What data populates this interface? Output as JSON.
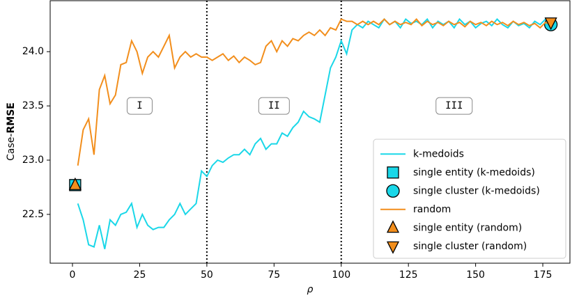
{
  "chart_data": {
    "type": "line",
    "ylabel": [
      "Case-",
      "RMSE"
    ],
    "xlabel": "ρ",
    "x": [
      2,
      4,
      6,
      8,
      10,
      12,
      14,
      16,
      18,
      20,
      22,
      24,
      26,
      28,
      30,
      32,
      34,
      36,
      38,
      40,
      42,
      44,
      46,
      48,
      50,
      52,
      54,
      56,
      58,
      60,
      62,
      64,
      66,
      68,
      70,
      72,
      74,
      76,
      78,
      80,
      82,
      84,
      86,
      88,
      90,
      92,
      94,
      96,
      98,
      100,
      102,
      104,
      106,
      108,
      110,
      112,
      114,
      116,
      118,
      120,
      122,
      124,
      126,
      128,
      130,
      132,
      134,
      136,
      138,
      140,
      142,
      144,
      146,
      148,
      150,
      152,
      154,
      156,
      158,
      160,
      162,
      164,
      166,
      168,
      170,
      172,
      174,
      176,
      178
    ],
    "series": [
      {
        "name": "k-medoids",
        "color": "#1ad7e8",
        "values": [
          22.6,
          22.45,
          22.22,
          22.2,
          22.4,
          22.18,
          22.45,
          22.4,
          22.5,
          22.52,
          22.6,
          22.38,
          22.5,
          22.4,
          22.36,
          22.38,
          22.38,
          22.45,
          22.5,
          22.6,
          22.5,
          22.55,
          22.6,
          22.9,
          22.85,
          22.95,
          23.0,
          22.98,
          23.02,
          23.05,
          23.05,
          23.1,
          23.05,
          23.15,
          23.2,
          23.1,
          23.15,
          23.15,
          23.25,
          23.22,
          23.3,
          23.35,
          23.45,
          23.4,
          23.38,
          23.35,
          23.6,
          23.85,
          23.95,
          24.1,
          23.98,
          24.2,
          24.25,
          24.22,
          24.28,
          24.25,
          24.22,
          24.3,
          24.25,
          24.28,
          24.22,
          24.3,
          24.26,
          24.28,
          24.25,
          24.3,
          24.22,
          24.28,
          24.25,
          24.28,
          24.22,
          24.3,
          24.25,
          24.28,
          24.22,
          24.26,
          24.28,
          24.24,
          24.3,
          24.25,
          24.22,
          24.28,
          24.24,
          24.26,
          24.22,
          24.28,
          24.25,
          24.3,
          24.25
        ]
      },
      {
        "name": "single entity (k-medoids)",
        "marker": "square",
        "color": "#1ad7e8",
        "x": [
          1
        ],
        "values": [
          22.77
        ]
      },
      {
        "name": "single cluster (k-medoids)",
        "marker": "circle",
        "color": "#1ad7e8",
        "x": [
          178
        ],
        "values": [
          24.25
        ]
      },
      {
        "name": "random",
        "color": "#f28e1c",
        "values": [
          22.95,
          23.28,
          23.38,
          23.05,
          23.65,
          23.78,
          23.52,
          23.6,
          23.88,
          23.9,
          24.1,
          24.0,
          23.8,
          23.95,
          24.0,
          23.95,
          24.05,
          24.15,
          23.85,
          23.95,
          24.0,
          23.95,
          23.98,
          23.95,
          23.95,
          23.92,
          23.95,
          23.98,
          23.92,
          23.96,
          23.9,
          23.95,
          23.92,
          23.88,
          23.9,
          24.05,
          24.1,
          24.0,
          24.1,
          24.05,
          24.12,
          24.1,
          24.15,
          24.18,
          24.15,
          24.2,
          24.15,
          24.22,
          24.2,
          24.3,
          24.28,
          24.28,
          24.25,
          24.28,
          24.25,
          24.28,
          24.25,
          24.3,
          24.25,
          24.28,
          24.25,
          24.27,
          24.25,
          24.3,
          24.24,
          24.28,
          24.25,
          24.27,
          24.24,
          24.28,
          24.25,
          24.27,
          24.23,
          24.28,
          24.25,
          24.27,
          24.24,
          24.28,
          24.25,
          24.27,
          24.24,
          24.28,
          24.25,
          24.27,
          24.24,
          24.26,
          24.22,
          24.27,
          24.25
        ]
      },
      {
        "name": "single entity (random)",
        "marker": "triangle-up",
        "color": "#f28e1c",
        "x": [
          1
        ],
        "values": [
          22.77
        ]
      },
      {
        "name": "single cluster (random)",
        "marker": "triangle-down",
        "color": "#f28e1c",
        "x": [
          178
        ],
        "values": [
          24.27
        ]
      }
    ],
    "xlim": [
      -8.3,
      185.1
    ],
    "ylim": [
      22.05,
      24.47
    ],
    "xticks": [
      0,
      25,
      50,
      75,
      100,
      125,
      150,
      175
    ],
    "yticks": [
      22.5,
      {
        "value": 23,
        "label": "23.0"
      },
      23.5,
      {
        "value": 24,
        "label": "24.0"
      }
    ],
    "vlines": [
      50,
      100
    ],
    "annotations": [
      {
        "text": "I",
        "x": 25,
        "y": 23.5
      },
      {
        "text": "II",
        "x": 75,
        "y": 23.5
      },
      {
        "text": "III",
        "x": 142,
        "y": 23.5
      }
    ],
    "legend": "lower right"
  }
}
